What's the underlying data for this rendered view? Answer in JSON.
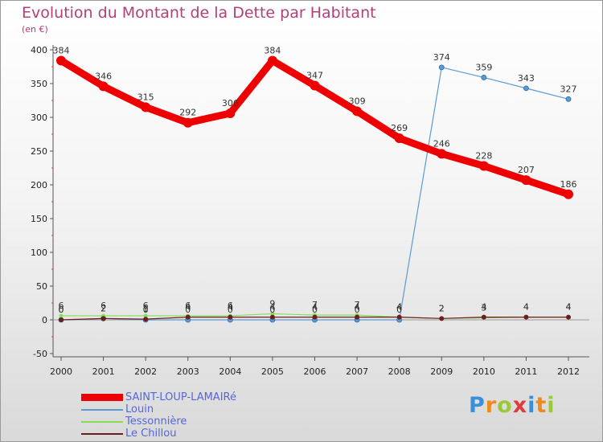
{
  "title": "Evolution du Montant de la Dette par Habitant",
  "subtitle": "(en €)",
  "logo": "Proxiti",
  "chart_data": {
    "type": "line",
    "title": "Evolution du Montant de la Dette par Habitant",
    "subtitle": "(en €)",
    "x": [
      "2000",
      "2001",
      "2002",
      "2003",
      "2004",
      "2005",
      "2006",
      "2007",
      "2008",
      "2009",
      "2010",
      "2011",
      "2012"
    ],
    "ylim": [
      -50,
      400
    ],
    "yticks": [
      -50,
      0,
      50,
      100,
      150,
      200,
      250,
      300,
      350,
      400
    ],
    "grid": false,
    "legend_position": "bottom-left",
    "series": [
      {
        "name": "SAINT-LOUP-LAMAIRé",
        "color": "#ee0000",
        "values": [
          384,
          346,
          315,
          292,
          306,
          384,
          347,
          309,
          269,
          246,
          228,
          207,
          186
        ],
        "labels_shown": true
      },
      {
        "name": "Louin",
        "color": "#5b9bd5",
        "values": [
          0,
          2,
          0,
          0,
          0,
          0,
          0,
          0,
          0,
          374,
          359,
          343,
          327
        ],
        "labels_shown": true
      },
      {
        "name": "Tessonnière",
        "color": "#88dd55",
        "values": [
          6,
          6,
          6,
          6,
          6,
          9,
          7,
          7,
          4,
          2,
          3,
          4,
          4
        ],
        "labels_shown": true
      },
      {
        "name": "Le Chillou",
        "color": "#6b1f1f",
        "values": [
          0,
          2,
          1,
          4,
          4,
          4,
          4,
          4,
          4,
          2,
          4,
          4,
          4
        ],
        "labels_shown": true
      }
    ]
  }
}
